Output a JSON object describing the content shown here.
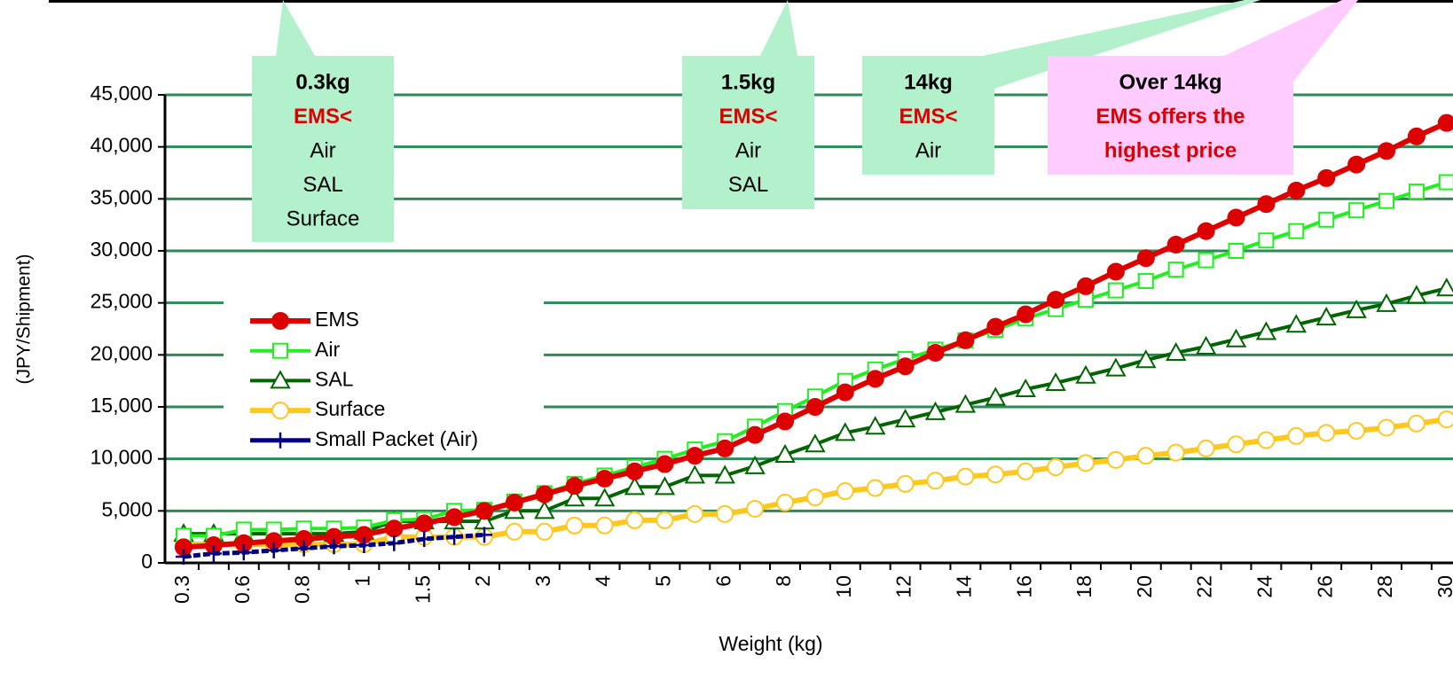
{
  "chart_data": {
    "type": "line",
    "x_label": "Weight (kg)",
    "y_label": "(JPY/Shipment)",
    "categories": [
      "0.3",
      null,
      "0.6",
      null,
      "0.8",
      null,
      "1",
      null,
      "1.5",
      null,
      "2",
      null,
      "3",
      null,
      "4",
      null,
      "5",
      null,
      "6",
      null,
      "8",
      null,
      "10",
      null,
      "12",
      null,
      "14",
      null,
      "16",
      null,
      "18",
      null,
      "20",
      null,
      "22",
      null,
      "24",
      null,
      "26",
      null,
      "28",
      null,
      "30"
    ],
    "ylim": [
      0,
      45000
    ],
    "yticks": [
      {
        "value": 0,
        "label": "0"
      },
      {
        "value": 5000,
        "label": "5,000"
      },
      {
        "value": 10000,
        "label": "10,000"
      },
      {
        "value": 15000,
        "label": "15,000"
      },
      {
        "value": 20000,
        "label": "20,000"
      },
      {
        "value": 25000,
        "label": "25,000"
      },
      {
        "value": 30000,
        "label": "30,000"
      },
      {
        "value": 35000,
        "label": "35,000"
      },
      {
        "value": 40000,
        "label": "40,000"
      },
      {
        "value": 45000,
        "label": "45,000"
      }
    ],
    "grid": true,
    "series": [
      {
        "name": "EMS",
        "color": "#dd0000",
        "marker": "circle-filled",
        "values": [
          1500,
          1700,
          1900,
          2100,
          2300,
          2500,
          2700,
          3300,
          3800,
          4400,
          5000,
          5800,
          6600,
          7400,
          8100,
          8800,
          9500,
          10300,
          11000,
          12300,
          13600,
          15000,
          16400,
          17700,
          18900,
          20200,
          21400,
          22700,
          23900,
          25300,
          26600,
          28000,
          29300,
          30600,
          31900,
          33200,
          34500,
          35800,
          37000,
          38300,
          39600,
          41000,
          42300
        ]
      },
      {
        "name": "Air",
        "color": "#22ee22",
        "marker": "square",
        "values": [
          2600,
          2600,
          3200,
          3200,
          3300,
          3300,
          3400,
          4100,
          4200,
          5000,
          5100,
          5900,
          6700,
          7600,
          8400,
          9200,
          10000,
          10900,
          11700,
          13100,
          14600,
          16000,
          17500,
          18600,
          19600,
          20500,
          21400,
          22400,
          23500,
          24400,
          25300,
          26200,
          27100,
          28200,
          29100,
          30000,
          31000,
          31900,
          33000,
          33900,
          34800,
          35700,
          36600
        ]
      },
      {
        "name": "SAL",
        "color": "#006400",
        "marker": "triangle",
        "values": [
          2800,
          2800,
          2800,
          2800,
          2800,
          2800,
          3000,
          4000,
          4000,
          4000,
          4000,
          5000,
          5000,
          6200,
          6200,
          7300,
          7300,
          8400,
          8400,
          9300,
          10400,
          11400,
          12500,
          13100,
          13800,
          14500,
          15200,
          15900,
          16700,
          17300,
          18000,
          18700,
          19500,
          20200,
          20800,
          21500,
          22200,
          22900,
          23600,
          24300,
          24900,
          25700,
          26400
        ]
      },
      {
        "name": "Surface",
        "color": "#ffc820",
        "marker": "circle",
        "values": [
          1800,
          1800,
          1800,
          1800,
          1800,
          1800,
          1800,
          2500,
          2500,
          2500,
          2500,
          3000,
          3000,
          3600,
          3600,
          4100,
          4100,
          4700,
          4700,
          5200,
          5800,
          6300,
          6900,
          7200,
          7600,
          7900,
          8300,
          8500,
          8800,
          9200,
          9600,
          9900,
          10300,
          10600,
          11000,
          11400,
          11800,
          12200,
          12500,
          12700,
          13000,
          13400,
          13800
        ]
      },
      {
        "name": "Small Packet (Air)",
        "color": "#000080",
        "marker": "plus",
        "values": [
          600,
          900,
          1000,
          1200,
          1400,
          1600,
          1700,
          1900,
          2300,
          2500,
          2700,
          null,
          null,
          null,
          null,
          null,
          null,
          null,
          null,
          null,
          null,
          null,
          null,
          null,
          null,
          null,
          null,
          null,
          null,
          null,
          null,
          null,
          null,
          null,
          null,
          null,
          null,
          null,
          null,
          null,
          null,
          null,
          null
        ]
      }
    ],
    "annotations": [
      {
        "fill": "#b3f0cc",
        "lines": [
          {
            "text": "0.3kg",
            "color": "#000000",
            "bold": true
          },
          {
            "text": "EMS<",
            "color": "#dd0000",
            "bold": true
          },
          {
            "text": "Air",
            "color": "#000000",
            "bold": false
          },
          {
            "text": "SAL",
            "color": "#000000",
            "bold": false
          },
          {
            "text": "Surface",
            "color": "#000000",
            "bold": false
          }
        ]
      },
      {
        "fill": "#b3f0cc",
        "lines": [
          {
            "text": "1.5kg",
            "color": "#000000",
            "bold": true
          },
          {
            "text": "EMS<",
            "color": "#dd0000",
            "bold": true
          },
          {
            "text": "Air",
            "color": "#000000",
            "bold": false
          },
          {
            "text": "SAL",
            "color": "#000000",
            "bold": false
          }
        ]
      },
      {
        "fill": "#b3f0cc",
        "lines": [
          {
            "text": "14kg",
            "color": "#000000",
            "bold": true
          },
          {
            "text": "EMS<",
            "color": "#dd0000",
            "bold": true
          },
          {
            "text": "Air",
            "color": "#000000",
            "bold": false
          }
        ]
      },
      {
        "fill": "#ffccff",
        "lines": [
          {
            "text": "Over 14kg",
            "color": "#000000",
            "bold": true
          },
          {
            "text": "EMS offers the",
            "color": "#dd0000",
            "bold": true
          },
          {
            "text": "highest price",
            "color": "#dd0000",
            "bold": true
          }
        ]
      }
    ]
  }
}
